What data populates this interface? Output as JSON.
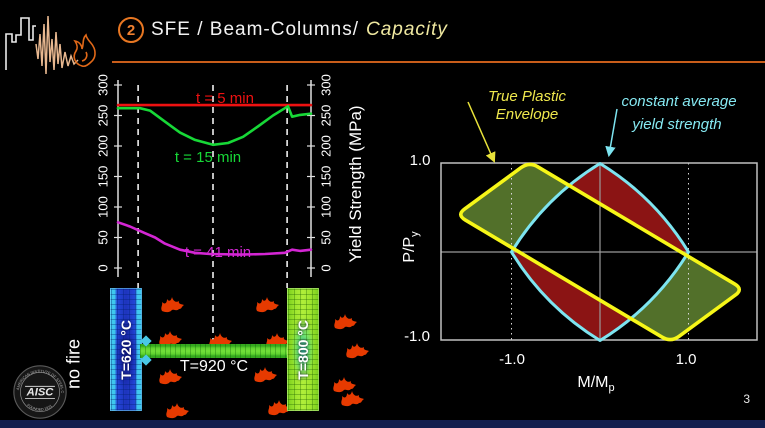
{
  "header": {
    "number": "2",
    "title_main": "SFE / Beam-Columns/",
    "title_emph": "Capacity"
  },
  "footer": {
    "page_number": "3",
    "bar_color": "#131f4e"
  },
  "branding": {
    "seal_center": "AISC",
    "seal_ring_top": "AMERICAN INSTITUTE OF STEEL CONSTRUCTION",
    "seal_ring_bottom": "FOUNDED 1921"
  },
  "beam_diagram": {
    "no_fire_label": "no fire",
    "left_column_temp": "T=620 °C",
    "beam_temp": "T=920 °C",
    "right_column_temp": "T=800 °C",
    "flame_color": "#e63a00",
    "flames": [
      [
        25,
        16
      ],
      [
        120,
        16
      ],
      [
        198,
        33
      ],
      [
        23,
        50
      ],
      [
        73,
        52
      ],
      [
        130,
        52
      ],
      [
        210,
        62
      ],
      [
        23,
        88
      ],
      [
        118,
        86
      ],
      [
        197,
        96
      ],
      [
        30,
        122
      ],
      [
        132,
        119
      ],
      [
        205,
        110
      ]
    ]
  },
  "chart_data": [
    {
      "id": "yield-strength-profile",
      "type": "line",
      "ylabel": "Yield Strength (MPa)",
      "ylim": [
        0,
        300
      ],
      "yticks": [
        0,
        50,
        100,
        150,
        200,
        250,
        300
      ],
      "grid": "vertical dashed member-location lines",
      "member_lines": [
        {
          "x": 0.104,
          "long": false
        },
        {
          "x": 0.492,
          "long": true
        },
        {
          "x": 0.876,
          "long": false
        }
      ],
      "series": [
        {
          "id": "t5",
          "name": "t = 5 min",
          "color": "#ee1111",
          "x": [
            0,
            1
          ],
          "values": [
            267,
            267
          ]
        },
        {
          "id": "t15",
          "name": "t = 15 min",
          "color": "#17d837",
          "x": [
            0,
            0.114,
            0.166,
            0.243,
            0.321,
            0.399,
            0.492,
            0.57,
            0.648,
            0.725,
            0.803,
            0.865,
            0.881,
            0.902,
            0.943,
            1
          ],
          "values": [
            262,
            262,
            258,
            240,
            222,
            210,
            202,
            205,
            215,
            232,
            250,
            262,
            265,
            248,
            251,
            253
          ]
        },
        {
          "id": "t41",
          "name": "t = 41 min",
          "color": "#d426d4",
          "x": [
            0,
            0.062,
            0.14,
            0.192,
            0.243,
            0.321,
            0.399,
            0.477,
            0.632,
            0.762,
            0.865,
            0.902,
            0.943,
            1
          ],
          "values": [
            75,
            68,
            57,
            50,
            40,
            30,
            25,
            23,
            22,
            23,
            25,
            30,
            28,
            30
          ]
        }
      ]
    },
    {
      "id": "pm-interaction-diagram",
      "type": "area",
      "xlabel_main": "M/M",
      "xlabel_sub": "p",
      "ylabel_main": "P/P",
      "ylabel_sub": "y",
      "xlim": [
        -1.8,
        1.78
      ],
      "ylim": [
        -1.0,
        1.0
      ],
      "xticks": [
        -1.0,
        1.0
      ],
      "xtick_labels": [
        "-1.0",
        "1.0"
      ],
      "ytick_labels": [
        "1.0",
        "-1.0"
      ],
      "annotations": [
        {
          "lines": [
            "True Plastic",
            "Envelope"
          ],
          "color": "#efe84d"
        },
        {
          "lines": [
            "constant average",
            "yield strength"
          ],
          "color": "#86e9f2"
        }
      ],
      "true_plastic_envelope": {
        "points": [
          [
            -1.62,
            0.42
          ],
          [
            -0.8,
            1.02
          ],
          [
            1.62,
            -0.42
          ],
          [
            0.8,
            -1.02
          ]
        ],
        "outline": "#f6f618",
        "fill": "#52702a"
      },
      "constant_yield_envelope": {
        "vertices": [
          [
            0,
            1
          ],
          [
            1,
            0
          ],
          [
            0,
            -1
          ],
          [
            -1,
            0
          ]
        ],
        "bulge": 0.62,
        "outline": "#7de4f0",
        "fill": "#8b1414"
      },
      "overlap_fill": "#000000"
    }
  ]
}
